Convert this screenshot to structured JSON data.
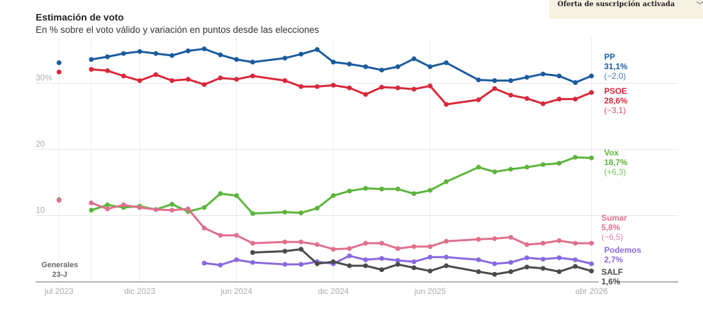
{
  "banner": {
    "label": "Oferta de suscripción activada",
    "chevron_icon": "chevron-down-icon"
  },
  "chart_data": {
    "type": "line",
    "title": "Estimación de voto",
    "subtitle": "En % sobre el voto válido y variación en puntos desde las elecciones",
    "x_unit": "months since jul 2023",
    "xlim": [
      0,
      33
    ],
    "ylim": [
      0,
      35
    ],
    "y_ticks": [
      {
        "value": 10,
        "label": "10"
      },
      {
        "value": 20,
        "label": "20"
      },
      {
        "value": 30,
        "label": "30%"
      }
    ],
    "x_ticks": [
      {
        "value": 0,
        "label": "jul 2023"
      },
      {
        "value": 5,
        "label": "dic 2023"
      },
      {
        "value": 11,
        "label": "jun 2024"
      },
      {
        "value": 17,
        "label": "dic 2024"
      },
      {
        "value": 23,
        "label": "jun 2025"
      },
      {
        "value": 33,
        "label": "abr 2026"
      }
    ],
    "election_label": [
      "Generales",
      "23-J"
    ],
    "election_x": 0,
    "grid": true,
    "series": [
      {
        "name": "PP",
        "color": "#1b5b9f",
        "election": 33.1,
        "value_label": "31,1%",
        "change_label": "(−2,0)",
        "x": [
          2,
          3,
          4,
          5,
          6,
          7,
          8,
          9,
          10,
          11,
          12,
          14,
          15,
          16,
          17,
          18,
          19,
          20,
          21,
          22,
          23,
          24,
          26,
          27,
          28,
          29,
          30,
          31,
          32,
          33
        ],
        "y": [
          33.6,
          34.0,
          34.5,
          34.8,
          34.5,
          34.2,
          34.9,
          35.2,
          34.3,
          33.6,
          33.2,
          33.8,
          34.4,
          35.1,
          33.2,
          32.9,
          32.5,
          32.0,
          32.5,
          33.7,
          32.5,
          33.1,
          30.5,
          30.4,
          30.4,
          30.9,
          31.4,
          31.1,
          30.1,
          31.1
        ]
      },
      {
        "name": "PSOE",
        "color": "#d8283a",
        "election": 31.7,
        "value_label": "28,6%",
        "change_label": "(−3,1)",
        "x": [
          2,
          3,
          4,
          5,
          6,
          7,
          8,
          9,
          10,
          11,
          12,
          14,
          15,
          16,
          17,
          18,
          19,
          20,
          21,
          22,
          23,
          24,
          26,
          27,
          28,
          29,
          30,
          31,
          32,
          33
        ],
        "y": [
          32.1,
          31.9,
          31.1,
          30.4,
          31.3,
          30.4,
          30.6,
          29.8,
          30.8,
          30.6,
          31.1,
          30.4,
          29.5,
          29.5,
          29.7,
          29.3,
          28.3,
          29.4,
          29.3,
          29.1,
          29.6,
          26.8,
          27.5,
          29.2,
          28.2,
          27.7,
          26.9,
          27.6,
          27.6,
          28.6
        ]
      },
      {
        "name": "Vox",
        "color": "#5bb53b",
        "election": 12.4,
        "value_label": "18,7%",
        "change_label": "(+6,3)",
        "x": [
          2,
          3,
          4,
          5,
          6,
          7,
          8,
          9,
          10,
          11,
          12,
          14,
          15,
          16,
          17,
          18,
          19,
          20,
          21,
          22,
          23,
          24,
          26,
          27,
          28,
          29,
          30,
          31,
          32,
          33
        ],
        "y": [
          10.8,
          11.6,
          11.2,
          11.4,
          10.9,
          11.7,
          10.6,
          11.2,
          13.3,
          13.0,
          10.3,
          10.5,
          10.4,
          11.1,
          13.0,
          13.7,
          14.1,
          14.0,
          14.0,
          13.3,
          13.8,
          15.1,
          17.3,
          16.6,
          17.0,
          17.3,
          17.7,
          17.9,
          18.8,
          18.7
        ]
      },
      {
        "name": "Sumar",
        "color": "#e06f8e",
        "election": 12.3,
        "value_label": "5,8%",
        "change_label": "(−6,5)",
        "x": [
          2,
          3,
          4,
          5,
          6,
          7,
          8,
          9,
          10,
          11,
          12,
          14,
          15,
          16,
          17,
          18,
          19,
          20,
          21,
          22,
          23,
          24,
          26,
          27,
          28,
          29,
          30,
          31,
          32,
          33
        ],
        "y": [
          11.9,
          11.0,
          11.6,
          11.2,
          10.9,
          10.8,
          11.0,
          8.1,
          7.0,
          7.0,
          5.8,
          6.0,
          6.0,
          5.6,
          4.9,
          5.0,
          5.8,
          5.8,
          5.0,
          5.3,
          5.3,
          6.1,
          6.4,
          6.5,
          6.7,
          5.6,
          5.8,
          6.2,
          5.8,
          5.8
        ]
      },
      {
        "name": "Podemos",
        "color": "#8a68e0",
        "election": null,
        "value_label": "2,7%",
        "change_label": "",
        "x": [
          9,
          10,
          11,
          12,
          14,
          15,
          16,
          17,
          18,
          19,
          20,
          21,
          22,
          23,
          24,
          26,
          27,
          28,
          29,
          30,
          31,
          32,
          33
        ],
        "y": [
          2.8,
          2.5,
          3.3,
          2.9,
          2.6,
          2.6,
          3.0,
          2.7,
          3.9,
          3.3,
          3.5,
          3.2,
          3.0,
          3.7,
          3.7,
          3.3,
          2.7,
          2.9,
          3.6,
          3.4,
          3.6,
          3.3,
          2.7
        ]
      },
      {
        "name": "SALF",
        "color": "#4a4a4a",
        "election": null,
        "value_label": "1,6%",
        "change_label": "",
        "x": [
          12,
          14,
          15,
          16,
          17,
          18,
          19,
          20,
          21,
          22,
          23,
          24,
          26,
          27,
          28,
          29,
          30,
          31,
          32,
          33
        ],
        "y": [
          4.4,
          4.6,
          4.9,
          2.7,
          3.0,
          2.4,
          2.4,
          1.8,
          2.6,
          2.1,
          1.6,
          2.4,
          1.5,
          1.1,
          1.5,
          2.2,
          2.0,
          1.5,
          2.3,
          1.6
        ]
      }
    ]
  }
}
